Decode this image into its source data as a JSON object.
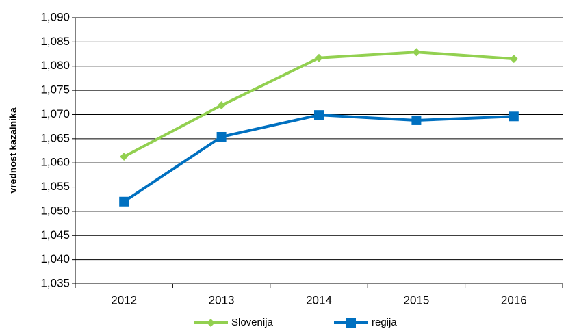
{
  "chart_data": {
    "type": "line",
    "ylabel": "vrednost kazalnika",
    "categories": [
      "2012",
      "2013",
      "2014",
      "2015",
      "2016"
    ],
    "series": [
      {
        "name": "Slovenija",
        "color": "#92d050",
        "marker": "diamond",
        "values": [
          1.0613,
          1.0719,
          1.0817,
          1.0829,
          1.0815
        ]
      },
      {
        "name": "regija",
        "color": "#0070c0",
        "marker": "square",
        "values": [
          1.052,
          1.0654,
          1.0699,
          1.0688,
          1.0696
        ]
      }
    ],
    "ylim": [
      1.035,
      1.09
    ],
    "yticks": [
      {
        "value": 1.035,
        "label": "1,035"
      },
      {
        "value": 1.04,
        "label": "1,040"
      },
      {
        "value": 1.045,
        "label": "1,045"
      },
      {
        "value": 1.05,
        "label": "1,050"
      },
      {
        "value": 1.055,
        "label": "1,055"
      },
      {
        "value": 1.06,
        "label": "1,060"
      },
      {
        "value": 1.065,
        "label": "1,065"
      },
      {
        "value": 1.07,
        "label": "1,070"
      },
      {
        "value": 1.075,
        "label": "1,075"
      },
      {
        "value": 1.08,
        "label": "1,080"
      },
      {
        "value": 1.085,
        "label": "1,085"
      },
      {
        "value": 1.09,
        "label": "1,090"
      }
    ],
    "grid": true,
    "legend": "bottom"
  }
}
